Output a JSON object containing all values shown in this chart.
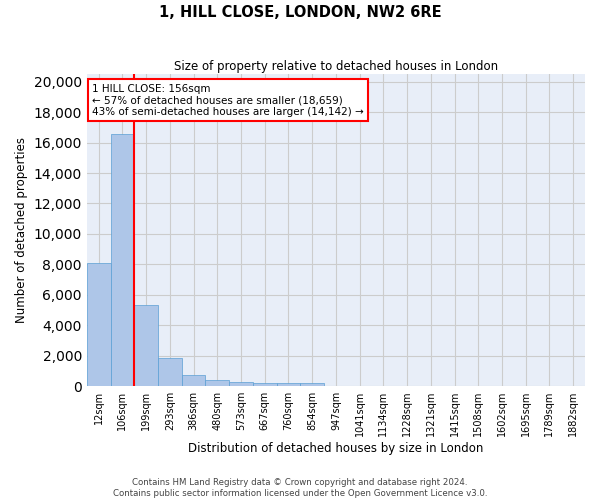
{
  "title": "1, HILL CLOSE, LONDON, NW2 6RE",
  "subtitle": "Size of property relative to detached houses in London",
  "xlabel": "Distribution of detached houses by size in London",
  "ylabel": "Number of detached properties",
  "categories": [
    "12sqm",
    "106sqm",
    "199sqm",
    "293sqm",
    "386sqm",
    "480sqm",
    "573sqm",
    "667sqm",
    "760sqm",
    "854sqm",
    "947sqm",
    "1041sqm",
    "1134sqm",
    "1228sqm",
    "1321sqm",
    "1415sqm",
    "1508sqm",
    "1602sqm",
    "1695sqm",
    "1789sqm",
    "1882sqm"
  ],
  "values": [
    8100,
    16600,
    5300,
    1850,
    700,
    370,
    280,
    230,
    200,
    170,
    0,
    0,
    0,
    0,
    0,
    0,
    0,
    0,
    0,
    0,
    0
  ],
  "bar_color": "#aec6e8",
  "bar_edge_color": "#5a9fd4",
  "vline_x": 1.5,
  "vline_color": "red",
  "vline_label": "1 HILL CLOSE: 156sqm",
  "annotation_smaller": "← 57% of detached houses are smaller (18,659)",
  "annotation_larger": "43% of semi-detached houses are larger (14,142) →",
  "annotation_box_color": "white",
  "annotation_box_edge": "red",
  "ylim": [
    0,
    20500
  ],
  "yticks": [
    0,
    2000,
    4000,
    6000,
    8000,
    10000,
    12000,
    14000,
    16000,
    18000,
    20000
  ],
  "grid_color": "#cccccc",
  "bg_color": "#e8eef8",
  "footer1": "Contains HM Land Registry data © Crown copyright and database right 2024.",
  "footer2": "Contains public sector information licensed under the Open Government Licence v3.0."
}
